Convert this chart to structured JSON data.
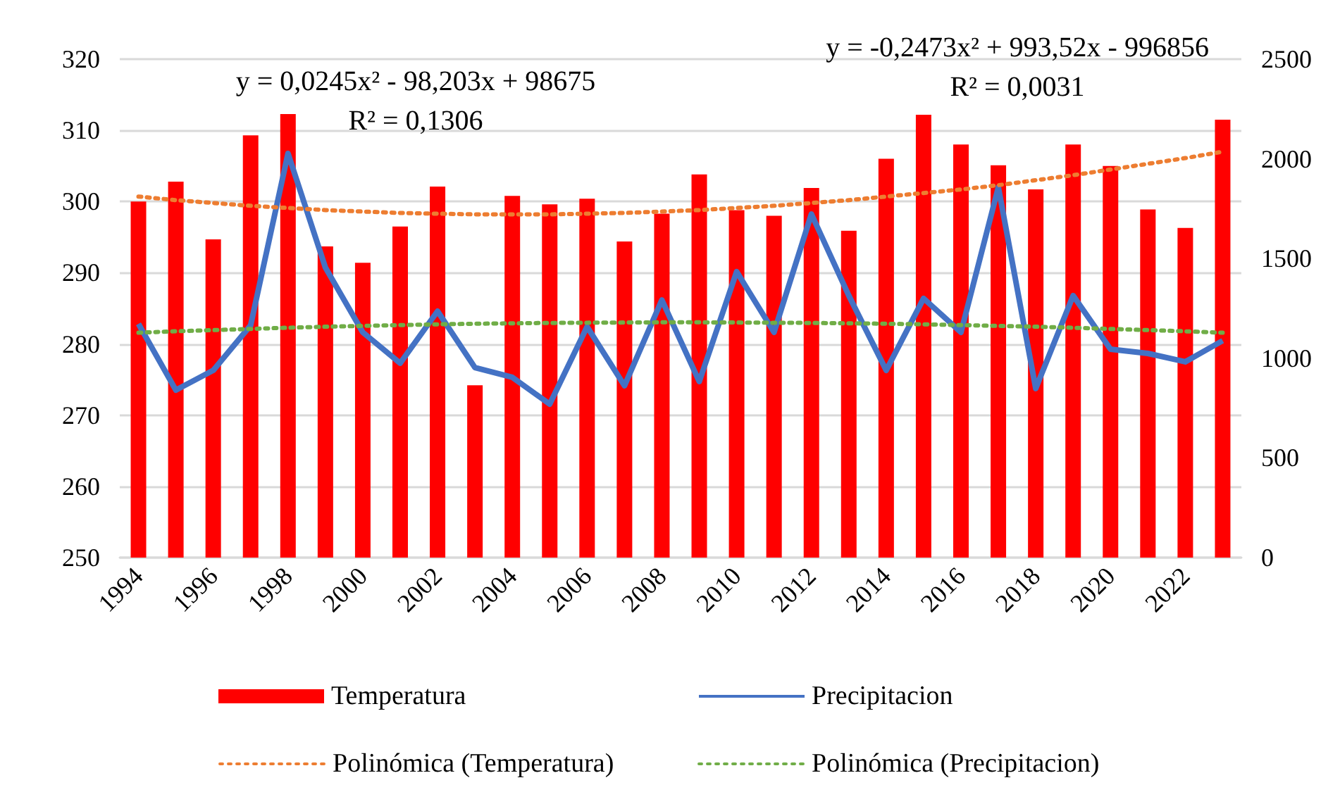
{
  "chart_data": {
    "type": "bar",
    "categories": [
      "1994",
      null,
      "1996",
      null,
      "1998",
      null,
      "2000",
      null,
      "2002",
      null,
      "2004",
      null,
      "2006",
      null,
      "2008",
      null,
      "2010",
      null,
      "2012",
      null,
      "2014",
      null,
      "2016",
      null,
      "2018",
      null,
      "2020",
      null,
      "2022",
      null
    ],
    "series": [
      {
        "name": "Temperatura",
        "color": "#ff0000",
        "values": [
          300,
          302.8,
          294.7,
          309.3,
          312.3,
          293.7,
          291.4,
          296.5,
          302.1,
          274.2,
          300.8,
          299.6,
          300.4,
          294.4,
          298.3,
          303.8,
          298.8,
          298,
          301.9,
          295.9,
          306,
          312.2,
          308,
          305.1,
          301.7,
          308,
          305,
          298.9,
          296.3,
          311.5
        ]
      },
      {
        "name": "Precipitacion",
        "type": "line",
        "axis": "y2",
        "color": "#4472c4",
        "line_style": "solid",
        "values": [
          1172,
          840,
          939,
          1165,
          2027,
          1455,
          1130,
          975,
          1236,
          953,
          904,
          770,
          1158,
          862,
          1292,
          883,
          1434,
          1130,
          1723,
          1314,
          939,
          1300,
          1130,
          1857,
          848,
          1314,
          1045,
          1024,
          982,
          1088
        ]
      },
      {
        "name": "Polinómica (Temperatura)",
        "type": "line",
        "color": "#ed7d31",
        "line_style": "dotted",
        "values": [
          300.7,
          300.2,
          299.8,
          299.4,
          299.1,
          298.8,
          298.6,
          298.4,
          298.3,
          298.2,
          298.2,
          298.2,
          298.3,
          298.4,
          298.6,
          298.8,
          299.1,
          299.4,
          299.8,
          300.2,
          300.7,
          301.2,
          301.7,
          302.3,
          303,
          303.7,
          304.5,
          305.3,
          306.1,
          307
        ]
      },
      {
        "name": "Polinómica (Precipitacion)",
        "type": "line",
        "axis": "y2",
        "color": "#70ad47",
        "line_style": "dotted",
        "values": [
          1128,
          1135,
          1141,
          1147,
          1153,
          1158,
          1162,
          1166,
          1170,
          1173,
          1175,
          1177,
          1178,
          1179,
          1180,
          1180,
          1179,
          1178,
          1177,
          1175,
          1173,
          1170,
          1166,
          1162,
          1158,
          1153,
          1147,
          1141,
          1135,
          1128
        ]
      }
    ],
    "ylim": [
      250,
      320
    ],
    "yticks": [
      250,
      260,
      270,
      280,
      290,
      300,
      310,
      320
    ],
    "y2lim": [
      0,
      2500
    ],
    "y2ticks": [
      0,
      500,
      1000,
      1500,
      2000,
      2500
    ],
    "grid": "y",
    "legend": "bottom",
    "marker": "none",
    "annotations": [
      "y = 0,0245x² - 98,203x + 98675",
      "R² = 0,1306",
      "y = -0,2473x² + 993,52x - 996856",
      "R² = 0,0031"
    ]
  }
}
